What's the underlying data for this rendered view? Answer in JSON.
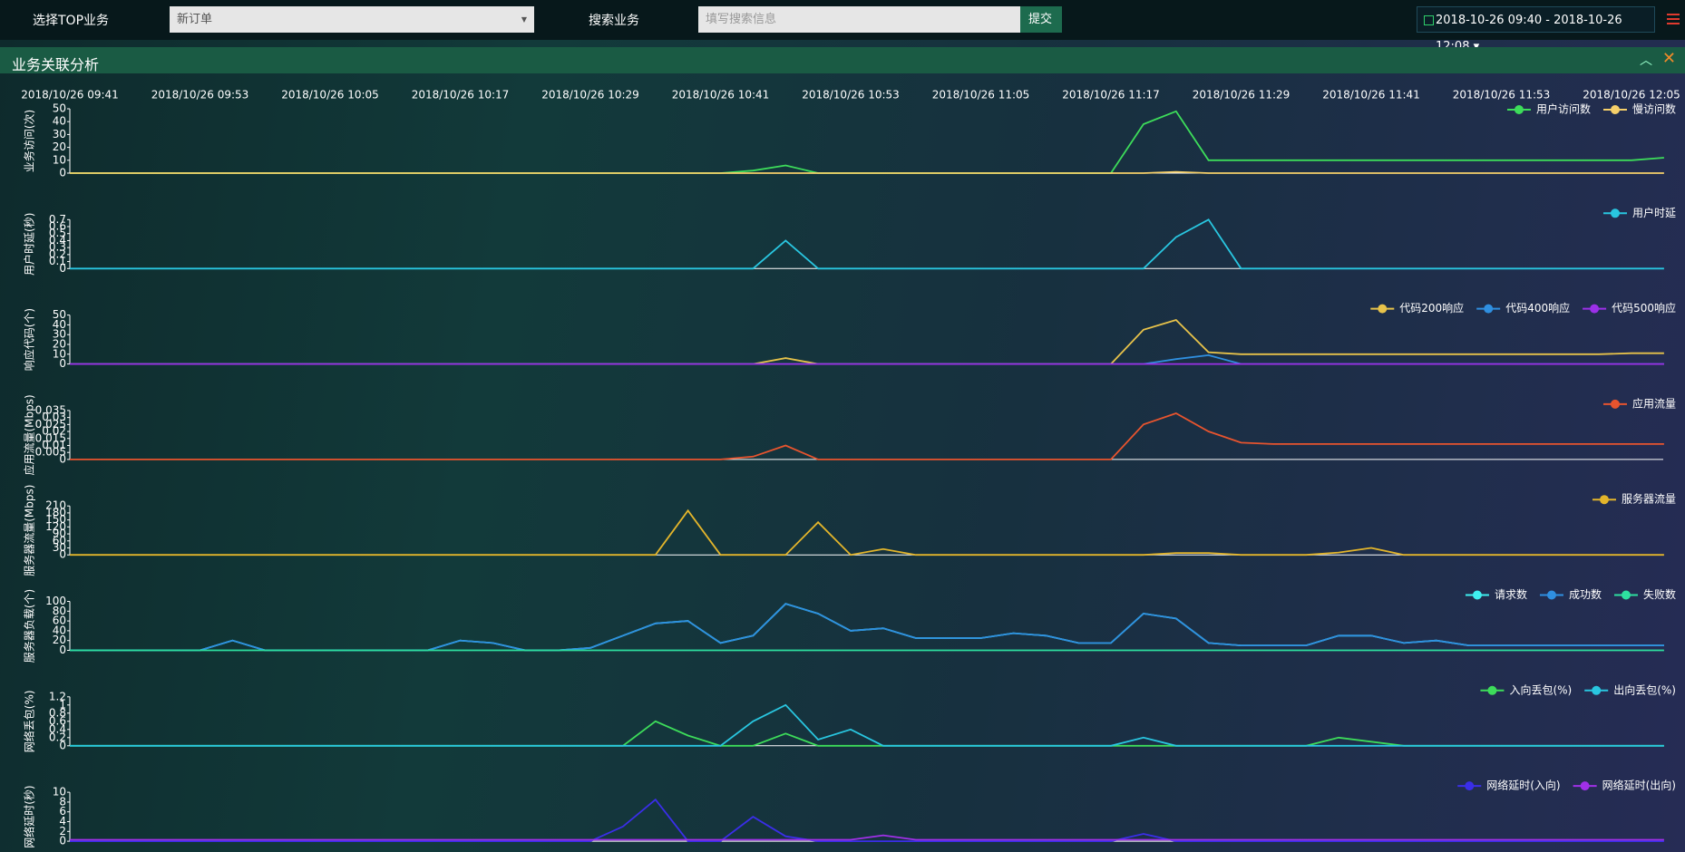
{
  "topbar": {
    "select_label": "选择TOP业务",
    "select_value": "新订单",
    "search_label": "搜索业务",
    "search_placeholder": "填写搜索信息",
    "submit": "提交",
    "date_range": "2018-10-26 09:40 - 2018-10-26 12:08"
  },
  "panel": {
    "title": "业务关联分析"
  },
  "chart_data": [
    {
      "type": "line",
      "y_label": "业务访问(次)",
      "ylim": [
        0,
        50
      ],
      "yticks": [
        0,
        10,
        20,
        30,
        40,
        50
      ],
      "categories": [
        "2018/10/26 09:41",
        null,
        null,
        null,
        "2018/10/26 09:53",
        null,
        null,
        null,
        "2018/10/26 10:05",
        null,
        null,
        null,
        "2018/10/26 10:17",
        null,
        null,
        null,
        "2018/10/26 10:29",
        null,
        null,
        null,
        "2018/10/26 10:41",
        null,
        null,
        null,
        "2018/10/26 10:53",
        null,
        null,
        null,
        "2018/10/26 11:05",
        null,
        null,
        null,
        "2018/10/26 11:17",
        null,
        null,
        null,
        "2018/10/26 11:29",
        null,
        null,
        null,
        "2018/10/26 11:41",
        null,
        null,
        null,
        "2018/10/26 11:53",
        null,
        null,
        null,
        "2018/10/26 12:05",
        null
      ],
      "series": [
        {
          "name": "用户访问数",
          "color": "#3ddc5a",
          "values": [
            0,
            0,
            0,
            0,
            0,
            0,
            0,
            0,
            0,
            0,
            0,
            0,
            0,
            0,
            0,
            0,
            0,
            0,
            0,
            0,
            0,
            2,
            6,
            0,
            0,
            0,
            0,
            0,
            0,
            0,
            0,
            0,
            0,
            38,
            48,
            10,
            10,
            10,
            10,
            10,
            10,
            10,
            10,
            10,
            10,
            10,
            10,
            10,
            10,
            12
          ]
        },
        {
          "name": "慢访问数",
          "color": "#f6d06a",
          "values": [
            0,
            0,
            0,
            0,
            0,
            0,
            0,
            0,
            0,
            0,
            0,
            0,
            0,
            0,
            0,
            0,
            0,
            0,
            0,
            0,
            0,
            0,
            0,
            0,
            0,
            0,
            0,
            0,
            0,
            0,
            0,
            0,
            0,
            0,
            1,
            0,
            0,
            0,
            0,
            0,
            0,
            0,
            0,
            0,
            0,
            0,
            0,
            0,
            0,
            0
          ]
        }
      ]
    },
    {
      "type": "line",
      "y_label": "用户时延(秒)",
      "ylim": [
        0,
        0.7
      ],
      "yticks": [
        0,
        0.1,
        0.2,
        0.3,
        0.4,
        0.5,
        0.6,
        0.7
      ],
      "series": [
        {
          "name": "用户时延",
          "color": "#29c6e0",
          "values": [
            0,
            0,
            0,
            0,
            0,
            0,
            0,
            0,
            0,
            0,
            0,
            0,
            0,
            0,
            0,
            0,
            0,
            0,
            0,
            0,
            0,
            0,
            0.4,
            0,
            0,
            0,
            0,
            0,
            0,
            0,
            0,
            0,
            0,
            0,
            0.45,
            0.7,
            0,
            0,
            0,
            0,
            0,
            0,
            0,
            0,
            0,
            0,
            0,
            0,
            0,
            0
          ]
        }
      ]
    },
    {
      "type": "line",
      "y_label": "响应代码(个)",
      "ylim": [
        0,
        50
      ],
      "yticks": [
        0,
        10,
        20,
        30,
        40,
        50
      ],
      "series": [
        {
          "name": "代码200响应",
          "color": "#e8c34a",
          "values": [
            0,
            0,
            0,
            0,
            0,
            0,
            0,
            0,
            0,
            0,
            0,
            0,
            0,
            0,
            0,
            0,
            0,
            0,
            0,
            0,
            0,
            0,
            6,
            0,
            0,
            0,
            0,
            0,
            0,
            0,
            0,
            0,
            0,
            35,
            45,
            12,
            10,
            10,
            10,
            10,
            10,
            10,
            10,
            10,
            10,
            10,
            10,
            10,
            11,
            11
          ]
        },
        {
          "name": "代码400响应",
          "color": "#2f8fe0",
          "values": [
            0,
            0,
            0,
            0,
            0,
            0,
            0,
            0,
            0,
            0,
            0,
            0,
            0,
            0,
            0,
            0,
            0,
            0,
            0,
            0,
            0,
            0,
            0,
            0,
            0,
            0,
            0,
            0,
            0,
            0,
            0,
            0,
            0,
            0,
            5,
            9,
            0,
            0,
            0,
            0,
            0,
            0,
            0,
            0,
            0,
            0,
            0,
            0,
            0,
            0
          ]
        },
        {
          "name": "代码500响应",
          "color": "#9b30e8",
          "values": [
            0,
            0,
            0,
            0,
            0,
            0,
            0,
            0,
            0,
            0,
            0,
            0,
            0,
            0,
            0,
            0,
            0,
            0,
            0,
            0,
            0,
            0,
            0,
            0,
            0,
            0,
            0,
            0,
            0,
            0,
            0,
            0,
            0,
            0,
            0,
            0,
            0,
            0,
            0,
            0,
            0,
            0,
            0,
            0,
            0,
            0,
            0,
            0,
            0,
            0
          ]
        }
      ]
    },
    {
      "type": "line",
      "y_label": "应用流量(Mbps)",
      "ylim": [
        0,
        0.035
      ],
      "yticks": [
        0,
        0.005,
        0.01,
        0.015,
        0.02,
        0.025,
        0.03,
        0.035
      ],
      "series": [
        {
          "name": "应用流量",
          "color": "#e8542e",
          "values": [
            0,
            0,
            0,
            0,
            0,
            0,
            0,
            0,
            0,
            0,
            0,
            0,
            0,
            0,
            0,
            0,
            0,
            0,
            0,
            0,
            0,
            0.002,
            0.01,
            0,
            0,
            0,
            0,
            0,
            0,
            0,
            0,
            0,
            0,
            0.025,
            0.033,
            0.02,
            0.012,
            0.011,
            0.011,
            0.011,
            0.011,
            0.011,
            0.011,
            0.011,
            0.011,
            0.011,
            0.011,
            0.011,
            0.011,
            0.011
          ]
        }
      ]
    },
    {
      "type": "line",
      "y_label": "服务器流量(Mbps)",
      "ylim": [
        0,
        210
      ],
      "yticks": [
        0,
        30,
        60,
        90,
        120,
        150,
        180,
        210
      ],
      "series": [
        {
          "name": "服务器流量",
          "color": "#e3b52b",
          "values": [
            0,
            0,
            0,
            0,
            0,
            0,
            0,
            0,
            0,
            0,
            0,
            0,
            0,
            0,
            0,
            0,
            0,
            0,
            0,
            190,
            0,
            0,
            0,
            140,
            0,
            25,
            0,
            0,
            0,
            0,
            0,
            0,
            0,
            0,
            8,
            8,
            0,
            0,
            0,
            10,
            30,
            0,
            0,
            0,
            0,
            0,
            0,
            0,
            0,
            0
          ]
        }
      ]
    },
    {
      "type": "line",
      "y_label": "服务器负载(个)",
      "ylim": [
        0,
        100
      ],
      "yticks": [
        0,
        20,
        40,
        60,
        80,
        100
      ],
      "series": [
        {
          "name": "请求数",
          "color": "#3ff0f0",
          "values": [
            0,
            0,
            0,
            0,
            0,
            20,
            0,
            0,
            0,
            0,
            0,
            0,
            20,
            15,
            0,
            0,
            5,
            30,
            55,
            60,
            15,
            30,
            95,
            75,
            40,
            45,
            25,
            25,
            25,
            35,
            30,
            15,
            15,
            75,
            65,
            15,
            10,
            10,
            10,
            30,
            30,
            15,
            20,
            10,
            10,
            10,
            10,
            10,
            10,
            10
          ]
        },
        {
          "name": "成功数",
          "color": "#2f8fe0",
          "values": [
            0,
            0,
            0,
            0,
            0,
            20,
            0,
            0,
            0,
            0,
            0,
            0,
            20,
            15,
            0,
            0,
            5,
            30,
            55,
            60,
            15,
            30,
            95,
            75,
            40,
            45,
            25,
            25,
            25,
            35,
            30,
            15,
            15,
            75,
            65,
            15,
            10,
            10,
            10,
            30,
            30,
            15,
            20,
            10,
            10,
            10,
            10,
            10,
            10,
            10
          ]
        },
        {
          "name": "失败数",
          "color": "#2ee0a0",
          "values": [
            0,
            0,
            0,
            0,
            0,
            0,
            0,
            0,
            0,
            0,
            0,
            0,
            0,
            0,
            0,
            0,
            0,
            0,
            0,
            0,
            0,
            0,
            0,
            0,
            0,
            0,
            0,
            0,
            0,
            0,
            0,
            0,
            0,
            0,
            0,
            0,
            0,
            0,
            0,
            0,
            0,
            0,
            0,
            0,
            0,
            0,
            0,
            0,
            0,
            0
          ]
        }
      ]
    },
    {
      "type": "line",
      "y_label": "网络丢包(%)",
      "ylim": [
        0,
        1.2
      ],
      "yticks": [
        0,
        0.2,
        0.4,
        0.6,
        0.8,
        1,
        1.2
      ],
      "series": [
        {
          "name": "入向丢包(%)",
          "color": "#3ddc5a",
          "values": [
            0,
            0,
            0,
            0,
            0,
            0,
            0,
            0,
            0,
            0,
            0,
            0,
            0,
            0,
            0,
            0,
            0,
            0,
            0.6,
            0.25,
            0,
            0,
            0.3,
            0,
            0,
            0,
            0,
            0,
            0,
            0,
            0,
            0,
            0,
            0,
            0,
            0,
            0,
            0,
            0,
            0.2,
            0.1,
            0,
            0,
            0,
            0,
            0,
            0,
            0,
            0,
            0
          ]
        },
        {
          "name": "出向丢包(%)",
          "color": "#29c6e0",
          "values": [
            0,
            0,
            0,
            0,
            0,
            0,
            0,
            0,
            0,
            0,
            0,
            0,
            0,
            0,
            0,
            0,
            0,
            0,
            0,
            0,
            0,
            0.6,
            1,
            0.15,
            0.4,
            0,
            0,
            0,
            0,
            0,
            0,
            0,
            0,
            0.2,
            0,
            0,
            0,
            0,
            0,
            0,
            0,
            0,
            0,
            0,
            0,
            0,
            0,
            0,
            0,
            0
          ]
        }
      ]
    },
    {
      "type": "line",
      "y_label": "网络延时(秒)",
      "ylim": [
        0,
        10
      ],
      "yticks": [
        0,
        2,
        4,
        6,
        8,
        10
      ],
      "series": [
        {
          "name": "网络延时(入向)",
          "color": "#3a2ee8",
          "values": [
            0,
            0,
            0,
            0,
            0,
            0,
            0,
            0,
            0,
            0,
            0,
            0,
            0,
            0,
            0,
            0,
            0,
            3,
            8.5,
            0,
            0,
            5,
            1,
            0,
            0,
            0,
            0,
            0,
            0,
            0,
            0,
            0,
            0,
            1.5,
            0,
            0,
            0,
            0,
            0,
            0,
            0,
            0,
            0,
            0,
            0,
            0,
            0,
            0,
            0,
            0
          ]
        },
        {
          "name": "网络延时(出向)",
          "color": "#a030e8",
          "values": [
            0.3,
            0.3,
            0.3,
            0.3,
            0.3,
            0.3,
            0.3,
            0.3,
            0.3,
            0.3,
            0.3,
            0.3,
            0.3,
            0.3,
            0.3,
            0.3,
            0.3,
            0.3,
            0.3,
            0.3,
            0.3,
            0.3,
            0.3,
            0.3,
            0.3,
            1.2,
            0.3,
            0.3,
            0.3,
            0.3,
            0.3,
            0.3,
            0.3,
            0.3,
            0.3,
            0.3,
            0.3,
            0.3,
            0.3,
            0.3,
            0.3,
            0.3,
            0.3,
            0.3,
            0.3,
            0.3,
            0.3,
            0.3,
            0.3,
            0.3
          ]
        }
      ]
    }
  ]
}
